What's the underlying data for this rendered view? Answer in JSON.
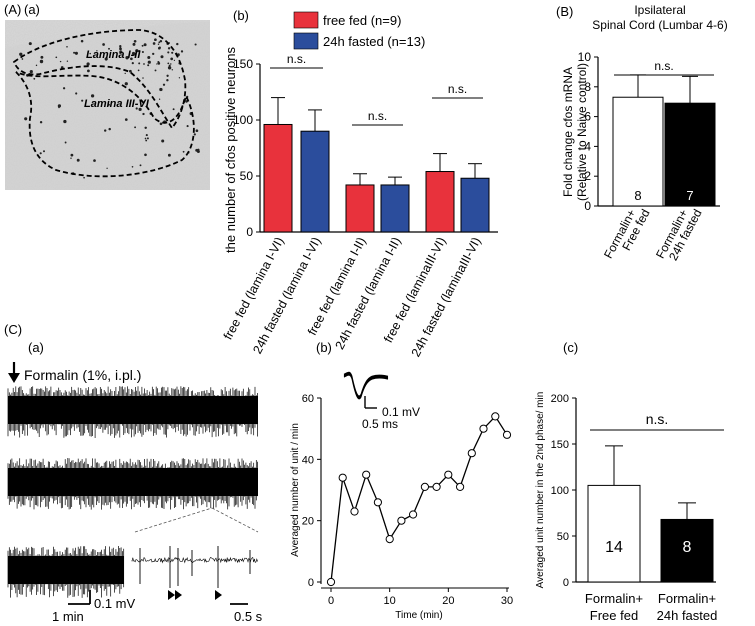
{
  "panel_labels": {
    "A": "(A)",
    "Aa": "(a)",
    "Ab": "(b)",
    "B": "(B)",
    "C": "(C)",
    "Ca": "(a)",
    "Cb": "(b)",
    "Cc": "(c)"
  },
  "histology": {
    "region_1": "Lamina I-II",
    "region_2": "Lamina III-VI"
  },
  "recording": {
    "stimulus_label": "Formalin (1%, i.pl.)",
    "scale_amplitude": "0.1 mV",
    "scale_time_long": "1 min",
    "scale_time_short": "0.5 s"
  },
  "colors": {
    "free_fed": "#e8323c",
    "fasted": "#2b4d9c",
    "bw_free": "#ffffff",
    "bw_fasted": "#000000"
  },
  "chart_data": [
    {
      "id": "Ab",
      "type": "bar",
      "ylabel": "the number of cfos positive neurons",
      "ylim": [
        0,
        150
      ],
      "yticks": [
        0,
        50,
        100,
        150
      ],
      "categories": [
        "free fed (lamina I-VI)",
        "24h fasted (lamina I-VI)",
        "free fed (lamina I-II)",
        "24h fasted (lamina I-II)",
        "free fed (laminaIII-VI)",
        "24h fasted (laminaIII-VI)"
      ],
      "values": [
        96,
        90,
        42,
        42,
        54,
        48
      ],
      "errors": [
        24,
        19,
        10,
        7,
        16,
        13
      ],
      "legend": [
        "free fed (n=9)",
        "24h fasted (n=13)"
      ],
      "legend_placement": "top",
      "annotations": [
        "n.s.",
        "n.s.",
        "n.s."
      ]
    },
    {
      "id": "B",
      "type": "bar",
      "title": "Ipsilateral Spinal Cord (Lumbar 4-6)",
      "title_lines": [
        "Ipsilateral",
        "Spinal Cord (Lumbar 4-6)"
      ],
      "ylabel_lines": [
        "Fold change cfos mRNA",
        "(Relative to Naive control)"
      ],
      "ylim": [
        0,
        10
      ],
      "yticks": [
        0,
        2,
        4,
        6,
        8,
        10
      ],
      "categories": [
        [
          "Formalin+",
          "Free fed"
        ],
        [
          "Formalin+",
          "24h fasted"
        ]
      ],
      "values": [
        7.3,
        6.9
      ],
      "errors": [
        1.5,
        1.8
      ],
      "n_labels": [
        "8",
        "7"
      ],
      "annotations": [
        "n.s."
      ]
    },
    {
      "id": "Cb",
      "type": "line",
      "xlabel": "Time (min)",
      "ylabel": "Averaged number of unit / min",
      "xlim": [
        0,
        30
      ],
      "ylim": [
        0,
        60
      ],
      "xticks": [
        0,
        10,
        20,
        30
      ],
      "yticks": [
        0,
        20,
        40,
        60
      ],
      "x": [
        0,
        2,
        4,
        6,
        8,
        10,
        12,
        14,
        16,
        18,
        20,
        22,
        24,
        26,
        28,
        30
      ],
      "y": [
        0,
        34,
        23,
        35,
        26,
        14,
        20,
        22,
        31,
        31,
        35,
        31,
        42,
        50,
        54,
        48
      ],
      "inset_scale": [
        "0.1 mV",
        "0.5 ms"
      ]
    },
    {
      "id": "Cc",
      "type": "bar",
      "ylabel": "Averaged unit number in the 2nd phase/ min",
      "ylim": [
        0,
        200
      ],
      "yticks": [
        0,
        50,
        100,
        150,
        200
      ],
      "categories": [
        [
          "Formalin+",
          "Free fed"
        ],
        [
          "Formalin+",
          "24h fasted"
        ]
      ],
      "values": [
        105,
        68
      ],
      "errors": [
        43,
        18
      ],
      "n_labels": [
        "14",
        "8"
      ],
      "annotations": [
        "n.s."
      ]
    }
  ]
}
